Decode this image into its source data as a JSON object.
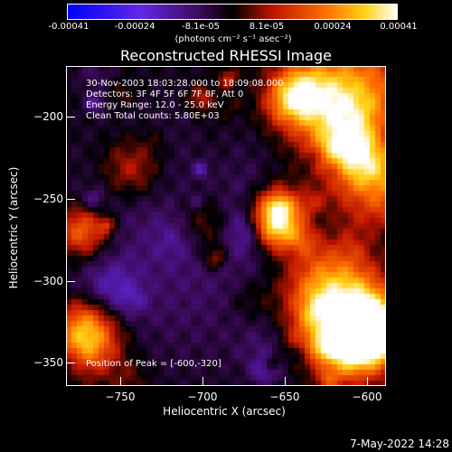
{
  "colorbar": {
    "ticks": [
      "-0.00041",
      "-0.00024",
      "-8.1e-05",
      "8.1e-05",
      "0.00024",
      "0.00041"
    ],
    "units": "(photons cm⁻² s⁻¹ asec⁻²)",
    "range": [
      -0.00041,
      0.00041
    ]
  },
  "chart_data": {
    "type": "heatmap",
    "title": "Reconstructed RHESSI Image",
    "xlabel": "Heliocentric X (arcsec)",
    "ylabel": "Heliocentric Y (arcsec)",
    "xlim": [
      -781,
      -587
    ],
    "ylim": [
      -371,
      -176
    ],
    "xticks": [
      "−750",
      "−700",
      "−650",
      "−600"
    ],
    "yticks": [
      "−200",
      "−250",
      "−300",
      "−350"
    ],
    "info_lines": [
      "30-Nov-2003 18:03:28.000 to 18:09:08.000",
      "Detectors: 3F 4F 5F 6F 7F 8F, Att 0",
      "Energy Range: 12.0 - 25.0 keV",
      "Clean     Total counts: 5.80E+03"
    ],
    "peak_label": "Position of Peak = [-600,-320]",
    "peak": [
      -600,
      -320
    ]
  },
  "footer": "7-May-2022 14:28"
}
